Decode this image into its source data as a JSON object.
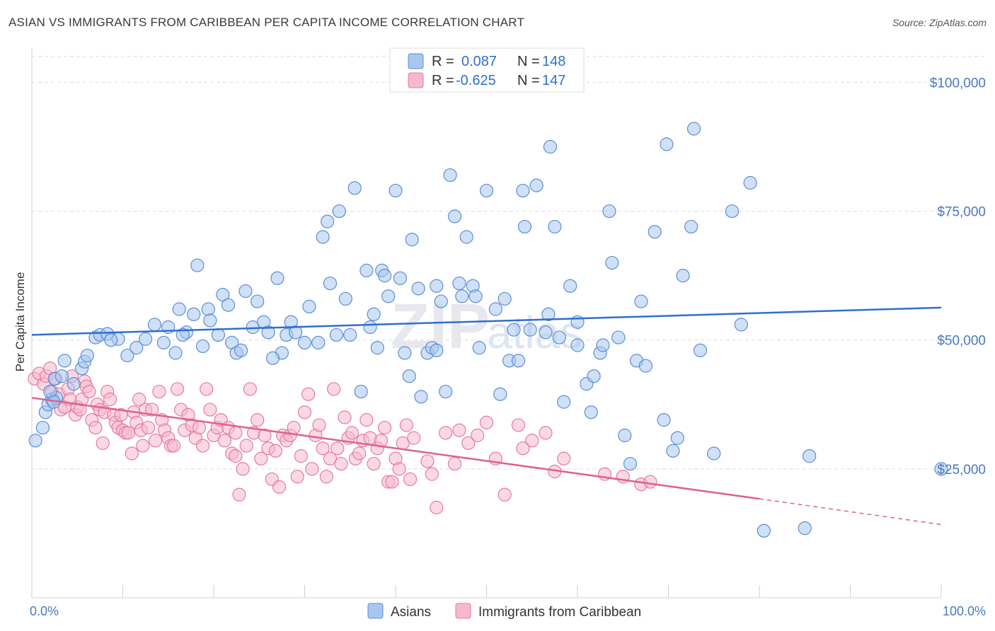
{
  "title": "ASIAN VS IMMIGRANTS FROM CARIBBEAN PER CAPITA INCOME CORRELATION CHART",
  "source": "Source: ZipAtlas.com",
  "watermark": {
    "zip": "ZIP",
    "atlas": "atlas"
  },
  "colors": {
    "asians_fill": "#a9c6ee",
    "asians_stroke": "#5b8fd6",
    "asians_line": "#2f6fd0",
    "caribbean_fill": "#f5b9cc",
    "caribbean_stroke": "#e8799f",
    "caribbean_line": "#e0608f",
    "tick_label": "#4a78c2",
    "grid": "#dddddd"
  },
  "legend": {
    "r_label": "R =",
    "n_label": "N =",
    "asians": {
      "r": "0.087",
      "n": "148"
    },
    "caribbean": {
      "r": "-0.625",
      "n": "147"
    }
  },
  "chart_data": {
    "type": "scatter",
    "title": "ASIAN VS IMMIGRANTS FROM CARIBBEAN PER CAPITA INCOME CORRELATION CHART",
    "xlabel": "",
    "ylabel": "Per Capita Income",
    "x_unit": "%",
    "xlim": [
      0,
      100
    ],
    "ylim": [
      0,
      105000
    ],
    "x_tick_labels": [
      "0.0%",
      "100.0%"
    ],
    "y_ticks": [
      25000,
      50000,
      75000,
      100000
    ],
    "y_tick_labels": [
      "$25,000",
      "$50,000",
      "$75,000",
      "$100,000"
    ],
    "grid": "horizontal dashed",
    "legend_position": "top-center",
    "series": [
      {
        "name": "Asians",
        "trend": {
          "x": [
            0,
            100
          ],
          "y": [
            51000,
            56300
          ]
        },
        "points": [
          [
            0.4,
            30500
          ],
          [
            1.2,
            33000
          ],
          [
            1.5,
            36000
          ],
          [
            1.8,
            37500
          ],
          [
            2.2,
            38500
          ],
          [
            2.7,
            38800
          ],
          [
            2.5,
            42500
          ],
          [
            3.3,
            43000
          ],
          [
            5.5,
            44500
          ],
          [
            5.8,
            45800
          ],
          [
            6.1,
            47000
          ],
          [
            7,
            50500
          ],
          [
            7.5,
            51000
          ],
          [
            8.3,
            51200
          ],
          [
            9.5,
            50200
          ],
          [
            10.5,
            47000
          ],
          [
            11.5,
            48500
          ],
          [
            12.5,
            50200
          ],
          [
            13.5,
            53000
          ],
          [
            14.5,
            49500
          ],
          [
            15,
            52500
          ],
          [
            15.8,
            47500
          ],
          [
            16.2,
            56000
          ],
          [
            17,
            51500
          ],
          [
            17.8,
            55000
          ],
          [
            18.2,
            64500
          ],
          [
            18.8,
            48800
          ],
          [
            19.4,
            56000
          ],
          [
            20.5,
            51000
          ],
          [
            21,
            58800
          ],
          [
            21.6,
            56800
          ],
          [
            22,
            49500
          ],
          [
            22.5,
            47500
          ],
          [
            23,
            48000
          ],
          [
            23.5,
            59500
          ],
          [
            24.3,
            52500
          ],
          [
            24.8,
            57500
          ],
          [
            25.5,
            53500
          ],
          [
            26,
            51500
          ],
          [
            27,
            62000
          ],
          [
            27.5,
            47500
          ],
          [
            28,
            51000
          ],
          [
            28.5,
            53500
          ],
          [
            29,
            51500
          ],
          [
            30,
            49500
          ],
          [
            30.5,
            56500
          ],
          [
            31.5,
            49500
          ],
          [
            32,
            70000
          ],
          [
            32.5,
            73000
          ],
          [
            32.8,
            61000
          ],
          [
            33.5,
            51000
          ],
          [
            33.8,
            75000
          ],
          [
            34.5,
            58000
          ],
          [
            35,
            51000
          ],
          [
            35.5,
            79500
          ],
          [
            36.2,
            40000
          ],
          [
            36.8,
            63500
          ],
          [
            37.2,
            52500
          ],
          [
            37.6,
            55000
          ],
          [
            38,
            48500
          ],
          [
            38.5,
            63500
          ],
          [
            38.8,
            62500
          ],
          [
            39.2,
            58500
          ],
          [
            40,
            79000
          ],
          [
            40.5,
            62000
          ],
          [
            41,
            47500
          ],
          [
            41.5,
            43000
          ],
          [
            41.8,
            69500
          ],
          [
            42.5,
            60000
          ],
          [
            42.8,
            39000
          ],
          [
            43.5,
            47500
          ],
          [
            44,
            48500
          ],
          [
            44.5,
            60500
          ],
          [
            45,
            57500
          ],
          [
            45.5,
            40000
          ],
          [
            46,
            82000
          ],
          [
            46.5,
            74000
          ],
          [
            47,
            61000
          ],
          [
            47.3,
            58500
          ],
          [
            47.8,
            70000
          ],
          [
            48.5,
            60500
          ],
          [
            48.8,
            58500
          ],
          [
            49.2,
            48500
          ],
          [
            50,
            79000
          ],
          [
            51,
            56000
          ],
          [
            51.5,
            39500
          ],
          [
            52,
            58000
          ],
          [
            52.5,
            46000
          ],
          [
            53,
            52000
          ],
          [
            53.5,
            46000
          ],
          [
            54,
            79000
          ],
          [
            54.2,
            72000
          ],
          [
            54.8,
            52000
          ],
          [
            55.5,
            80000
          ],
          [
            56.5,
            51500
          ],
          [
            56.8,
            55000
          ],
          [
            57,
            87500
          ],
          [
            57.5,
            72000
          ],
          [
            58,
            50500
          ],
          [
            58.5,
            38000
          ],
          [
            59.2,
            60500
          ],
          [
            60,
            53500
          ],
          [
            61,
            41500
          ],
          [
            61.5,
            36000
          ],
          [
            61.8,
            43000
          ],
          [
            62.5,
            47500
          ],
          [
            62.8,
            49000
          ],
          [
            63.5,
            75000
          ],
          [
            63.8,
            65000
          ],
          [
            64.5,
            50500
          ],
          [
            65.2,
            31500
          ],
          [
            65.8,
            26000
          ],
          [
            66.5,
            46000
          ],
          [
            67,
            57500
          ],
          [
            67.5,
            45000
          ],
          [
            68.5,
            71000
          ],
          [
            69.5,
            34500
          ],
          [
            69.8,
            88000
          ],
          [
            70.5,
            28500
          ],
          [
            71,
            31000
          ],
          [
            71.6,
            62500
          ],
          [
            72.5,
            72000
          ],
          [
            72.8,
            91000
          ],
          [
            73.5,
            48000
          ],
          [
            75,
            28000
          ],
          [
            77,
            75000
          ],
          [
            78,
            53000
          ],
          [
            79,
            80500
          ],
          [
            80.5,
            13000
          ],
          [
            85,
            13500
          ],
          [
            85.5,
            27500
          ],
          [
            100,
            25000
          ],
          [
            2,
            40000
          ],
          [
            2.4,
            38000
          ],
          [
            3.6,
            46000
          ],
          [
            4.6,
            41500
          ],
          [
            8.7,
            50000
          ],
          [
            26.5,
            46500
          ],
          [
            44.5,
            48000
          ],
          [
            60,
            49000
          ],
          [
            16.6,
            51000
          ],
          [
            19.6,
            53800
          ]
        ]
      },
      {
        "name": "Immigrants from Caribbean",
        "trend": {
          "x": [
            0,
            80
          ],
          "y": [
            38800,
            19200
          ]
        },
        "trend_dashed": {
          "x": [
            80,
            100
          ],
          "y": [
            19200,
            14200
          ]
        },
        "points": [
          [
            0.3,
            42500
          ],
          [
            0.8,
            43500
          ],
          [
            1.3,
            41500
          ],
          [
            1.6,
            43000
          ],
          [
            2,
            44500
          ],
          [
            2.2,
            40000
          ],
          [
            2.6,
            42500
          ],
          [
            3,
            39500
          ],
          [
            3.2,
            36500
          ],
          [
            3.6,
            37000
          ],
          [
            4,
            40500
          ],
          [
            4.2,
            38500
          ],
          [
            4.4,
            43000
          ],
          [
            4.8,
            35500
          ],
          [
            5,
            37000
          ],
          [
            5.3,
            36500
          ],
          [
            5.5,
            38500
          ],
          [
            5.8,
            42000
          ],
          [
            6,
            41000
          ],
          [
            6.3,
            40000
          ],
          [
            6.6,
            34500
          ],
          [
            7,
            33000
          ],
          [
            7.2,
            37500
          ],
          [
            7.5,
            36500
          ],
          [
            7.8,
            30000
          ],
          [
            8,
            36000
          ],
          [
            8.3,
            40000
          ],
          [
            8.6,
            38500
          ],
          [
            9,
            35500
          ],
          [
            9.2,
            34000
          ],
          [
            9.5,
            33000
          ],
          [
            9.8,
            35500
          ],
          [
            10,
            32500
          ],
          [
            10.3,
            32000
          ],
          [
            10.6,
            32000
          ],
          [
            11,
            28000
          ],
          [
            11.2,
            36000
          ],
          [
            11.5,
            34000
          ],
          [
            11.8,
            38500
          ],
          [
            12,
            32500
          ],
          [
            12.2,
            29500
          ],
          [
            12.5,
            36500
          ],
          [
            12.8,
            33000
          ],
          [
            13.2,
            36500
          ],
          [
            13.6,
            30500
          ],
          [
            14,
            40000
          ],
          [
            14.3,
            34500
          ],
          [
            14.6,
            32500
          ],
          [
            15,
            31000
          ],
          [
            15.3,
            29500
          ],
          [
            15.6,
            29500
          ],
          [
            16,
            40500
          ],
          [
            16.4,
            36500
          ],
          [
            16.8,
            32500
          ],
          [
            17.2,
            35500
          ],
          [
            17.6,
            33500
          ],
          [
            18,
            31000
          ],
          [
            18.4,
            33000
          ],
          [
            18.8,
            29500
          ],
          [
            19.2,
            40500
          ],
          [
            19.6,
            36500
          ],
          [
            20,
            31500
          ],
          [
            20.4,
            33000
          ],
          [
            20.8,
            34500
          ],
          [
            21.2,
            30500
          ],
          [
            21.6,
            33000
          ],
          [
            22,
            28000
          ],
          [
            22.4,
            32000
          ],
          [
            22.8,
            20000
          ],
          [
            23.2,
            25000
          ],
          [
            23.6,
            29500
          ],
          [
            24,
            40500
          ],
          [
            24.4,
            32000
          ],
          [
            24.8,
            34500
          ],
          [
            25.2,
            27000
          ],
          [
            25.6,
            31500
          ],
          [
            26,
            29000
          ],
          [
            26.4,
            23000
          ],
          [
            26.8,
            28500
          ],
          [
            27.2,
            21500
          ],
          [
            27.6,
            31500
          ],
          [
            28,
            30500
          ],
          [
            28.4,
            31500
          ],
          [
            28.8,
            33000
          ],
          [
            29.2,
            23500
          ],
          [
            29.6,
            27500
          ],
          [
            30,
            36000
          ],
          [
            30.4,
            39500
          ],
          [
            30.8,
            25000
          ],
          [
            31.2,
            31500
          ],
          [
            31.6,
            33500
          ],
          [
            32,
            29000
          ],
          [
            32.4,
            23500
          ],
          [
            32.8,
            27000
          ],
          [
            33.2,
            40500
          ],
          [
            33.6,
            29000
          ],
          [
            34,
            26000
          ],
          [
            34.4,
            35000
          ],
          [
            34.8,
            31000
          ],
          [
            35.2,
            32000
          ],
          [
            35.6,
            27000
          ],
          [
            36,
            28000
          ],
          [
            36.4,
            30500
          ],
          [
            36.8,
            34500
          ],
          [
            37.2,
            31000
          ],
          [
            37.6,
            26000
          ],
          [
            38,
            29000
          ],
          [
            38.4,
            30500
          ],
          [
            38.8,
            33000
          ],
          [
            39.2,
            22500
          ],
          [
            39.6,
            22500
          ],
          [
            40,
            27000
          ],
          [
            40.4,
            25000
          ],
          [
            40.8,
            30000
          ],
          [
            41.2,
            33500
          ],
          [
            41.6,
            23000
          ],
          [
            42,
            31000
          ],
          [
            43.5,
            26500
          ],
          [
            44,
            24000
          ],
          [
            44.5,
            17500
          ],
          [
            45.5,
            32000
          ],
          [
            46.5,
            26000
          ],
          [
            47,
            32500
          ],
          [
            48,
            30000
          ],
          [
            49,
            31500
          ],
          [
            50,
            34000
          ],
          [
            51,
            27000
          ],
          [
            52,
            20000
          ],
          [
            53.5,
            33500
          ],
          [
            55,
            30500
          ],
          [
            56.5,
            32000
          ],
          [
            57.5,
            24500
          ],
          [
            63,
            24000
          ],
          [
            65,
            23500
          ],
          [
            67,
            22000
          ],
          [
            68,
            22500
          ],
          [
            54,
            29000
          ],
          [
            58.5,
            27000
          ],
          [
            22.4,
            27500
          ]
        ]
      }
    ]
  },
  "bottom_legend": {
    "asians": "Asians",
    "caribbean": "Immigrants from Caribbean"
  }
}
